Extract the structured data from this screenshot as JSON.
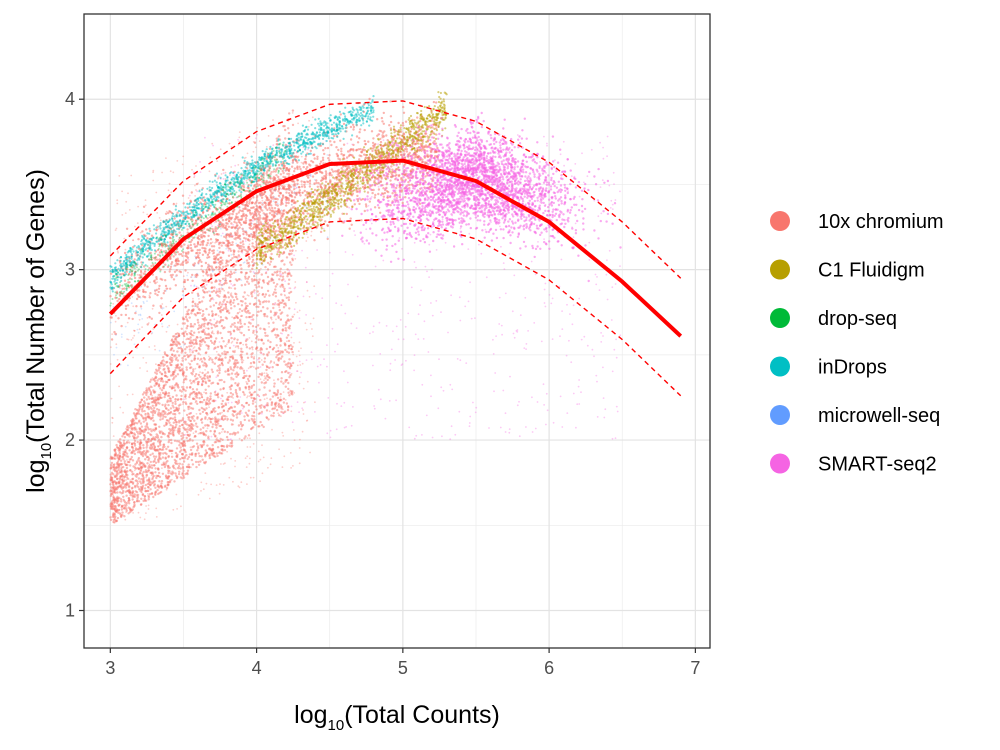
{
  "chart_data": {
    "type": "scatter",
    "title": "",
    "xlabel": {
      "prefix": "log",
      "sub": "10",
      "text": "(Total Counts)"
    },
    "ylabel": {
      "prefix": "log",
      "sub": "10",
      "text": "(Total Number of Genes)"
    },
    "xlim": [
      2.82,
      7.1
    ],
    "ylim": [
      0.78,
      4.5
    ],
    "xticks": [
      3,
      4,
      5,
      6,
      7
    ],
    "yticks": [
      1,
      2,
      3,
      4
    ],
    "xtick_labels": [
      "3",
      "4",
      "5",
      "6",
      "7"
    ],
    "ytick_labels": [
      "1",
      "2",
      "3",
      "4"
    ],
    "grid": true,
    "legend_position": "right",
    "series": [
      {
        "name": "10x chromium",
        "color": "#F8766D"
      },
      {
        "name": "C1 Fluidigm",
        "color": "#B79F00"
      },
      {
        "name": "drop-seq",
        "color": "#00BA38"
      },
      {
        "name": "inDrops",
        "color": "#00BFC4"
      },
      {
        "name": "microwell-seq",
        "color": "#619CFF"
      },
      {
        "name": "SMART-seq2",
        "color": "#F564E3"
      }
    ],
    "fit_line": {
      "color": "#FF0000",
      "x": [
        3.0,
        3.5,
        4.0,
        4.5,
        5.0,
        5.5,
        6.0,
        6.5,
        6.9
      ],
      "y": [
        2.74,
        3.18,
        3.46,
        3.62,
        3.64,
        3.52,
        3.28,
        2.93,
        2.61
      ],
      "upper": [
        3.08,
        3.52,
        3.81,
        3.97,
        3.99,
        3.87,
        3.63,
        3.28,
        2.95
      ],
      "lower": [
        2.39,
        2.84,
        3.12,
        3.28,
        3.3,
        3.18,
        2.94,
        2.59,
        2.26
      ]
    }
  }
}
